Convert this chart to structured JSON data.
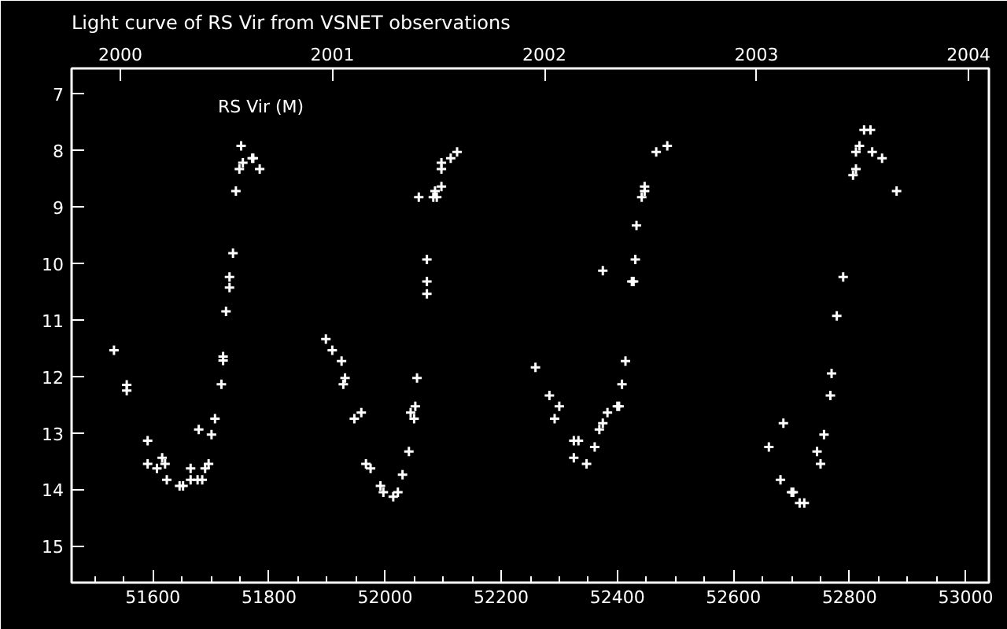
{
  "chart_data": {
    "type": "scatter",
    "title": "Light curve of RS Vir from VSNET observations",
    "annotations": [
      "RS Vir (M)"
    ],
    "marker": "cross",
    "grid": false,
    "xlim": [
      51460,
      53040
    ],
    "ylim": [
      15.65,
      6.55
    ],
    "xticks": [
      51600,
      51800,
      52000,
      52200,
      52400,
      52600,
      52800,
      53000,
      {
        "value": 51500,
        "label": null
      },
      {
        "value": 51550,
        "label": null
      },
      {
        "value": 51650,
        "label": null
      },
      {
        "value": 51700,
        "label": null
      },
      {
        "value": 51750,
        "label": null
      },
      {
        "value": 51850,
        "label": null
      },
      {
        "value": 51900,
        "label": null
      },
      {
        "value": 51950,
        "label": null
      },
      {
        "value": 52050,
        "label": null
      },
      {
        "value": 52100,
        "label": null
      },
      {
        "value": 52150,
        "label": null
      },
      {
        "value": 52250,
        "label": null
      },
      {
        "value": 52300,
        "label": null
      },
      {
        "value": 52350,
        "label": null
      },
      {
        "value": 52450,
        "label": null
      },
      {
        "value": 52500,
        "label": null
      },
      {
        "value": 52550,
        "label": null
      },
      {
        "value": 52650,
        "label": null
      },
      {
        "value": 52700,
        "label": null
      },
      {
        "value": 52750,
        "label": null
      },
      {
        "value": 52850,
        "label": null
      },
      {
        "value": 52900,
        "label": null
      },
      {
        "value": 52950,
        "label": null
      }
    ],
    "yticks": [
      7,
      8,
      9,
      10,
      11,
      12,
      13,
      14,
      15
    ],
    "x2lim": [
      1999.77,
      2004.096
    ],
    "x2ticks": [
      2000,
      2001,
      2002,
      2003,
      2004
    ],
    "series": [
      {
        "color": "#ffffff",
        "x": [
          51533,
          51555,
          51555,
          51591,
          51591,
          51607,
          51616,
          51621,
          51624,
          51646,
          51652,
          51665,
          51665,
          51677,
          51685,
          51679,
          51690,
          51696,
          51701,
          51707,
          51718,
          51721,
          51721,
          51726,
          51732,
          51732,
          51738,
          51743,
          51749,
          51752,
          51755,
          51771,
          51773,
          51784,
          51898,
          51909,
          51925,
          51931,
          51928,
          51947,
          51959,
          51967,
          51975,
          51992,
          51997,
          52014,
          52022,
          52030,
          52041,
          52044,
          52050,
          52052,
          52055,
          52058,
          52072,
          52072,
          52072,
          52083,
          52089,
          52086,
          52097,
          52097,
          52097,
          52113,
          52124,
          52259,
          52283,
          52300,
          52292,
          52325,
          52333,
          52325,
          52347,
          52361,
          52369,
          52375,
          52383,
          52400,
          52403,
          52408,
          52414,
          52375,
          52425,
          52428,
          52431,
          52433,
          52442,
          52447,
          52447,
          52467,
          52486,
          52661,
          52686,
          52681,
          52700,
          52703,
          52714,
          52722,
          52744,
          52750,
          52756,
          52767,
          52769,
          52778,
          52789,
          52806,
          52811,
          52811,
          52817,
          52825,
          52836,
          52839,
          52856,
          52881
        ],
        "values": [
          11.54,
          12.15,
          12.25,
          13.14,
          13.55,
          13.63,
          13.44,
          13.55,
          13.83,
          13.94,
          13.94,
          13.63,
          13.83,
          13.83,
          13.83,
          12.94,
          13.63,
          13.55,
          13.03,
          12.75,
          12.14,
          11.65,
          11.72,
          10.85,
          10.24,
          10.43,
          9.82,
          8.72,
          8.33,
          7.92,
          8.22,
          8.14,
          8.14,
          8.33,
          11.34,
          11.54,
          11.73,
          12.03,
          12.14,
          12.75,
          12.64,
          13.55,
          13.63,
          13.94,
          14.05,
          14.13,
          14.05,
          13.74,
          13.33,
          12.64,
          12.75,
          12.53,
          12.03,
          8.83,
          9.93,
          10.32,
          10.54,
          8.83,
          8.83,
          8.72,
          8.64,
          8.33,
          8.22,
          8.14,
          8.03,
          11.84,
          12.34,
          12.53,
          12.75,
          13.14,
          13.14,
          13.44,
          13.55,
          13.25,
          12.94,
          12.83,
          12.64,
          12.53,
          12.53,
          12.14,
          11.73,
          10.13,
          10.32,
          10.32,
          9.93,
          9.33,
          8.83,
          8.64,
          8.72,
          8.03,
          7.92,
          13.25,
          12.83,
          13.83,
          14.05,
          14.05,
          14.24,
          14.24,
          13.33,
          13.55,
          13.03,
          12.34,
          11.95,
          10.93,
          10.24,
          8.44,
          8.33,
          8.03,
          7.92,
          7.64,
          7.64,
          8.03,
          8.14,
          8.72
        ]
      }
    ]
  }
}
